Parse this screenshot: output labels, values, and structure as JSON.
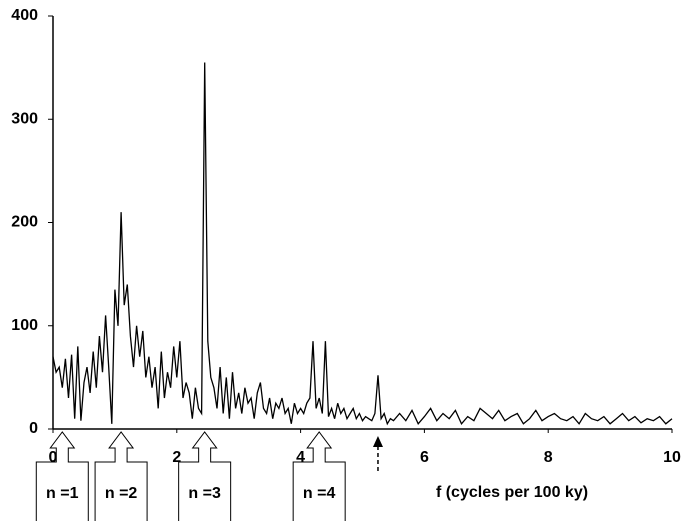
{
  "chart_data": {
    "type": "line",
    "xlabel": "f (cycles per 100 ky)",
    "xlim": [
      0,
      10
    ],
    "ylim": [
      0,
      400
    ],
    "xticks": [
      0,
      2,
      4,
      6,
      8,
      10
    ],
    "yticks": [
      0,
      100,
      200,
      300,
      400
    ],
    "color": "#000000",
    "x": [
      0,
      0.05,
      0.1,
      0.15,
      0.2,
      0.25,
      0.3,
      0.35,
      0.4,
      0.45,
      0.5,
      0.55,
      0.6,
      0.65,
      0.7,
      0.75,
      0.8,
      0.85,
      0.9,
      0.95,
      1,
      1.05,
      1.1,
      1.15,
      1.2,
      1.25,
      1.3,
      1.35,
      1.4,
      1.45,
      1.5,
      1.55,
      1.6,
      1.65,
      1.7,
      1.75,
      1.8,
      1.85,
      1.9,
      1.95,
      2,
      2.05,
      2.1,
      2.15,
      2.2,
      2.25,
      2.3,
      2.35,
      2.4,
      2.45,
      2.5,
      2.55,
      2.6,
      2.65,
      2.7,
      2.75,
      2.8,
      2.85,
      2.9,
      2.95,
      3,
      3.05,
      3.1,
      3.15,
      3.2,
      3.25,
      3.3,
      3.35,
      3.4,
      3.45,
      3.5,
      3.55,
      3.6,
      3.65,
      3.7,
      3.75,
      3.8,
      3.85,
      3.9,
      3.95,
      4,
      4.05,
      4.1,
      4.15,
      4.2,
      4.25,
      4.3,
      4.35,
      4.4,
      4.45,
      4.5,
      4.55,
      4.6,
      4.65,
      4.7,
      4.75,
      4.8,
      4.85,
      4.9,
      4.95,
      5,
      5.05,
      5.1,
      5.15,
      5.2,
      5.25,
      5.3,
      5.35,
      5.4,
      5.45,
      5.5,
      5.6,
      5.7,
      5.8,
      5.9,
      6,
      6.1,
      6.2,
      6.3,
      6.4,
      6.5,
      6.6,
      6.7,
      6.8,
      6.9,
      7,
      7.1,
      7.2,
      7.3,
      7.4,
      7.5,
      7.6,
      7.7,
      7.8,
      7.9,
      8,
      8.1,
      8.2,
      8.3,
      8.4,
      8.5,
      8.6,
      8.7,
      8.8,
      8.9,
      9,
      9.1,
      9.2,
      9.3,
      9.4,
      9.5,
      9.6,
      9.7,
      9.8,
      9.9,
      10
    ],
    "values": [
      70,
      55,
      60,
      40,
      68,
      30,
      72,
      10,
      80,
      8,
      45,
      60,
      35,
      75,
      40,
      90,
      55,
      110,
      60,
      5,
      135,
      100,
      210,
      120,
      140,
      90,
      60,
      100,
      70,
      95,
      50,
      70,
      40,
      60,
      20,
      75,
      30,
      55,
      40,
      80,
      50,
      85,
      30,
      45,
      35,
      10,
      40,
      20,
      15,
      355,
      85,
      50,
      40,
      20,
      60,
      15,
      50,
      10,
      55,
      20,
      35,
      15,
      40,
      25,
      30,
      10,
      35,
      45,
      20,
      15,
      30,
      10,
      25,
      20,
      30,
      15,
      20,
      5,
      25,
      15,
      20,
      15,
      25,
      30,
      85,
      20,
      30,
      15,
      85,
      12,
      20,
      10,
      25,
      15,
      20,
      10,
      15,
      20,
      10,
      15,
      8,
      12,
      10,
      8,
      15,
      52,
      10,
      15,
      5,
      10,
      8,
      15,
      8,
      18,
      5,
      12,
      20,
      8,
      15,
      10,
      18,
      5,
      12,
      8,
      20,
      15,
      10,
      18,
      8,
      12,
      15,
      5,
      10,
      18,
      8,
      12,
      15,
      10,
      8,
      12,
      5,
      15,
      10,
      8,
      12,
      5,
      10,
      15,
      8,
      12,
      6,
      10,
      8,
      12,
      5,
      10
    ],
    "annotations": [
      {
        "text": "n =1",
        "x": 0.15
      },
      {
        "text": "n =2",
        "x": 1.1
      },
      {
        "text": "n =3",
        "x": 2.45
      },
      {
        "text": "n =4",
        "x": 4.3
      }
    ],
    "marker_arrow": {
      "x": 5.25
    }
  }
}
